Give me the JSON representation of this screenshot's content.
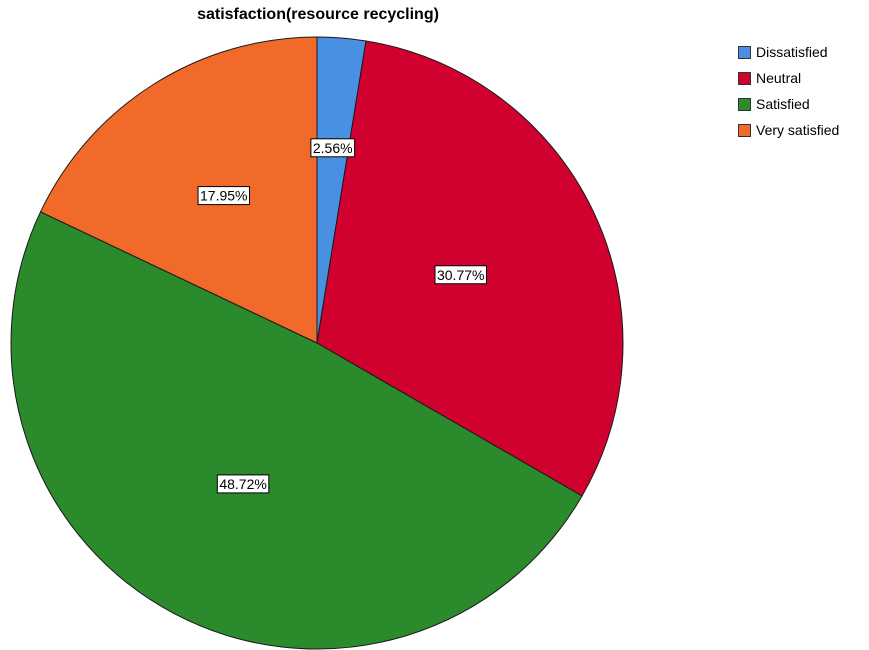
{
  "chart_data": {
    "type": "pie",
    "title": "satisfaction(resource recycling)",
    "categories": [
      "Dissatisfied",
      "Neutral",
      "Satisfied",
      "Very satisfied"
    ],
    "values": [
      2.56,
      30.77,
      48.72,
      17.95
    ],
    "value_labels": [
      "2.56%",
      "30.77%",
      "48.72%",
      "17.95%"
    ],
    "colors": [
      "#4A90E2",
      "#D0002F",
      "#2A8A2C",
      "#F26A2A"
    ],
    "start": "top (12 o'clock), clockwise",
    "legend": "top-right"
  }
}
